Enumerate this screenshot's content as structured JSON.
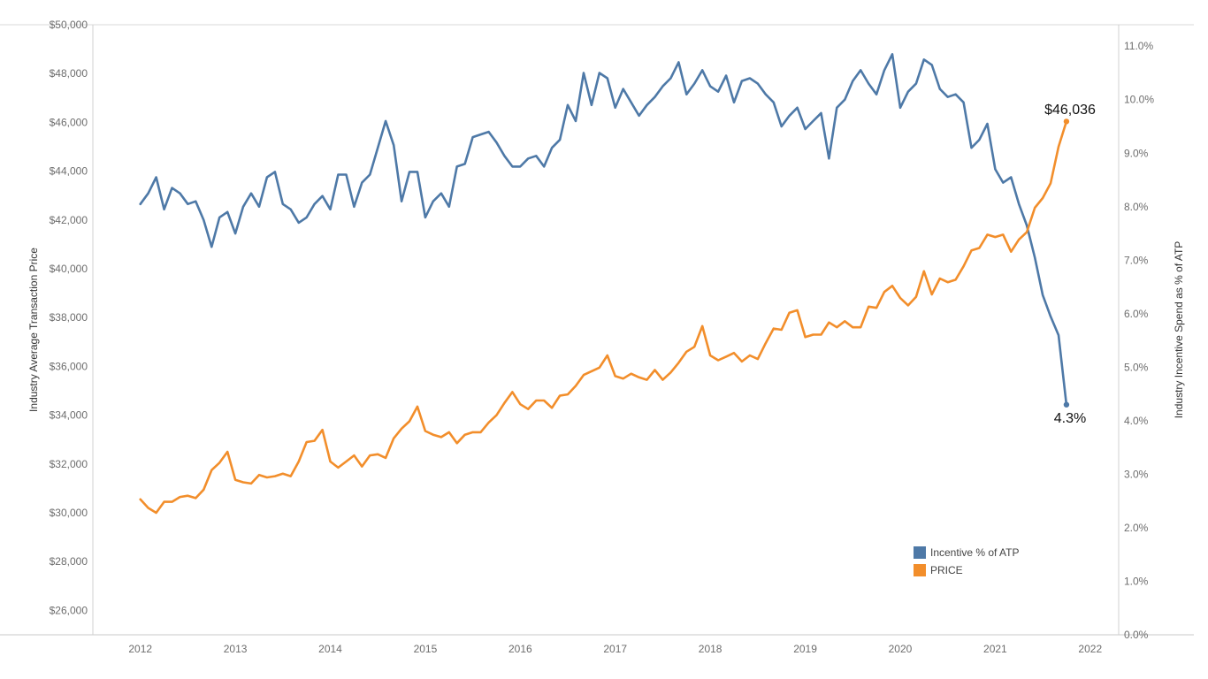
{
  "chart_data": {
    "type": "line",
    "title": "",
    "xlabel": "",
    "ylabel": "Industry Average Transaction Price",
    "y2label": "Industry Incentive Spend as % of ATP",
    "x_ticks": [
      "2012",
      "2013",
      "2014",
      "2015",
      "2016",
      "2017",
      "2018",
      "2019",
      "2020",
      "2021",
      "2022"
    ],
    "xlim": [
      2011.5,
      2022.3
    ],
    "ylim": [
      25000,
      50000
    ],
    "y2lim": [
      0.0,
      11.4
    ],
    "y_ticks": [
      "$26,000",
      "$28,000",
      "$30,000",
      "$32,000",
      "$34,000",
      "$36,000",
      "$38,000",
      "$40,000",
      "$42,000",
      "$44,000",
      "$46,000",
      "$48,000",
      "$50,000"
    ],
    "y_tick_values": [
      26000,
      28000,
      30000,
      32000,
      34000,
      36000,
      38000,
      40000,
      42000,
      44000,
      46000,
      48000,
      50000
    ],
    "y2_ticks": [
      "0.0%",
      "1.0%",
      "2.0%",
      "3.0%",
      "4.0%",
      "5.0%",
      "6.0%",
      "7.0%",
      "8.0%",
      "9.0%",
      "10.0%",
      "11.0%"
    ],
    "y2_tick_values": [
      0,
      1,
      2,
      3,
      4,
      5,
      6,
      7,
      8,
      9,
      10,
      11
    ],
    "grid": false,
    "legend_position": "bottom-right",
    "annotations": {
      "price_end": "$46,036",
      "incentive_end": "4.3%"
    },
    "series": [
      {
        "name": "Incentive % of ATP",
        "color": "#4e79a7",
        "axis": "right",
        "x": [
          2012.0,
          2012.083,
          2012.167,
          2012.25,
          2012.333,
          2012.417,
          2012.5,
          2012.583,
          2012.667,
          2012.75,
          2012.833,
          2012.917,
          2013.0,
          2013.083,
          2013.167,
          2013.25,
          2013.333,
          2013.417,
          2013.5,
          2013.583,
          2013.667,
          2013.75,
          2013.833,
          2013.917,
          2014.0,
          2014.083,
          2014.167,
          2014.25,
          2014.333,
          2014.417,
          2014.5,
          2014.583,
          2014.667,
          2014.75,
          2014.833,
          2014.917,
          2015.0,
          2015.083,
          2015.167,
          2015.25,
          2015.333,
          2015.417,
          2015.5,
          2015.583,
          2015.667,
          2015.75,
          2015.833,
          2015.917,
          2016.0,
          2016.083,
          2016.167,
          2016.25,
          2016.333,
          2016.417,
          2016.5,
          2016.583,
          2016.667,
          2016.75,
          2016.833,
          2016.917,
          2017.0,
          2017.083,
          2017.167,
          2017.25,
          2017.333,
          2017.417,
          2017.5,
          2017.583,
          2017.667,
          2017.75,
          2017.833,
          2017.917,
          2018.0,
          2018.083,
          2018.167,
          2018.25,
          2018.333,
          2018.417,
          2018.5,
          2018.583,
          2018.667,
          2018.75,
          2018.833,
          2018.917,
          2019.0,
          2019.083,
          2019.167,
          2019.25,
          2019.333,
          2019.417,
          2019.5,
          2019.583,
          2019.667,
          2019.75,
          2019.833,
          2019.917,
          2020.0,
          2020.083,
          2020.167,
          2020.25,
          2020.333,
          2020.417,
          2020.5,
          2020.583,
          2020.667,
          2020.75,
          2020.833,
          2020.917,
          2021.0,
          2021.083,
          2021.167,
          2021.25,
          2021.333,
          2021.417,
          2021.5,
          2021.583,
          2021.667,
          2021.75
        ],
        "values": [
          8.05,
          8.25,
          8.55,
          7.95,
          8.35,
          8.25,
          8.05,
          8.1,
          7.75,
          7.25,
          7.8,
          7.9,
          7.5,
          8.0,
          8.25,
          8.0,
          8.55,
          8.65,
          8.05,
          7.95,
          7.7,
          7.8,
          8.05,
          8.2,
          7.95,
          8.6,
          8.6,
          8.0,
          8.45,
          8.6,
          9.1,
          9.6,
          9.15,
          8.1,
          8.65,
          8.65,
          7.8,
          8.1,
          8.25,
          8.0,
          8.75,
          8.8,
          9.3,
          9.35,
          9.4,
          9.2,
          8.95,
          8.75,
          8.75,
          8.9,
          8.95,
          8.75,
          9.1,
          9.25,
          9.9,
          9.6,
          10.5,
          9.9,
          10.5,
          10.4,
          9.85,
          10.2,
          9.95,
          9.7,
          9.9,
          10.05,
          10.25,
          10.4,
          10.7,
          10.1,
          10.3,
          10.55,
          10.25,
          10.15,
          10.45,
          9.95,
          10.35,
          10.4,
          10.3,
          10.1,
          9.95,
          9.5,
          9.7,
          9.85,
          9.45,
          9.6,
          9.75,
          8.9,
          9.85,
          10.0,
          10.35,
          10.55,
          10.3,
          10.1,
          10.55,
          10.85,
          9.85,
          10.15,
          10.3,
          10.75,
          10.65,
          10.2,
          10.05,
          10.1,
          9.95,
          9.1,
          9.25,
          9.55,
          8.7,
          8.45,
          8.55,
          8.05,
          7.65,
          7.05,
          6.35,
          5.95,
          5.6,
          4.3
        ]
      },
      {
        "name": "PRICE",
        "color": "#f28e2b",
        "axis": "left",
        "x": [
          2012.0,
          2012.083,
          2012.167,
          2012.25,
          2012.333,
          2012.417,
          2012.5,
          2012.583,
          2012.667,
          2012.75,
          2012.833,
          2012.917,
          2013.0,
          2013.083,
          2013.167,
          2013.25,
          2013.333,
          2013.417,
          2013.5,
          2013.583,
          2013.667,
          2013.75,
          2013.833,
          2013.917,
          2014.0,
          2014.083,
          2014.167,
          2014.25,
          2014.333,
          2014.417,
          2014.5,
          2014.583,
          2014.667,
          2014.75,
          2014.833,
          2014.917,
          2015.0,
          2015.083,
          2015.167,
          2015.25,
          2015.333,
          2015.417,
          2015.5,
          2015.583,
          2015.667,
          2015.75,
          2015.833,
          2015.917,
          2016.0,
          2016.083,
          2016.167,
          2016.25,
          2016.333,
          2016.417,
          2016.5,
          2016.583,
          2016.667,
          2016.75,
          2016.833,
          2016.917,
          2017.0,
          2017.083,
          2017.167,
          2017.25,
          2017.333,
          2017.417,
          2017.5,
          2017.583,
          2017.667,
          2017.75,
          2017.833,
          2017.917,
          2018.0,
          2018.083,
          2018.167,
          2018.25,
          2018.333,
          2018.417,
          2018.5,
          2018.583,
          2018.667,
          2018.75,
          2018.833,
          2018.917,
          2019.0,
          2019.083,
          2019.167,
          2019.25,
          2019.333,
          2019.417,
          2019.5,
          2019.583,
          2019.667,
          2019.75,
          2019.833,
          2019.917,
          2020.0,
          2020.083,
          2020.167,
          2020.25,
          2020.333,
          2020.417,
          2020.5,
          2020.583,
          2020.667,
          2020.75,
          2020.833,
          2020.917,
          2021.0,
          2021.083,
          2021.167,
          2021.25,
          2021.333,
          2021.417,
          2021.5,
          2021.583,
          2021.667,
          2021.75
        ],
        "values": [
          30550,
          30200,
          30000,
          30450,
          30450,
          30650,
          30700,
          30600,
          30950,
          31750,
          32050,
          32500,
          31350,
          31250,
          31200,
          31550,
          31450,
          31500,
          31600,
          31500,
          32100,
          32900,
          32950,
          33400,
          32100,
          31850,
          32100,
          32350,
          31900,
          32350,
          32400,
          32250,
          33050,
          33450,
          33750,
          34350,
          33350,
          33200,
          33100,
          33300,
          32850,
          33200,
          33300,
          33300,
          33700,
          34000,
          34500,
          34950,
          34450,
          34250,
          34600,
          34600,
          34300,
          34800,
          34850,
          35200,
          35650,
          35800,
          35950,
          36450,
          35600,
          35500,
          35700,
          35550,
          35450,
          35850,
          35450,
          35750,
          36150,
          36600,
          36800,
          37650,
          36450,
          36250,
          36400,
          36550,
          36200,
          36450,
          36300,
          36950,
          37550,
          37500,
          38200,
          38300,
          37200,
          37300,
          37300,
          37800,
          37600,
          37850,
          37600,
          37600,
          38450,
          38400,
          39050,
          39300,
          38800,
          38500,
          38850,
          39900,
          38950,
          39600,
          39450,
          39550,
          40100,
          40750,
          40850,
          41400,
          41300,
          41400,
          40700,
          41200,
          41500,
          42500,
          42900,
          43500,
          45000,
          46036
        ]
      }
    ]
  }
}
